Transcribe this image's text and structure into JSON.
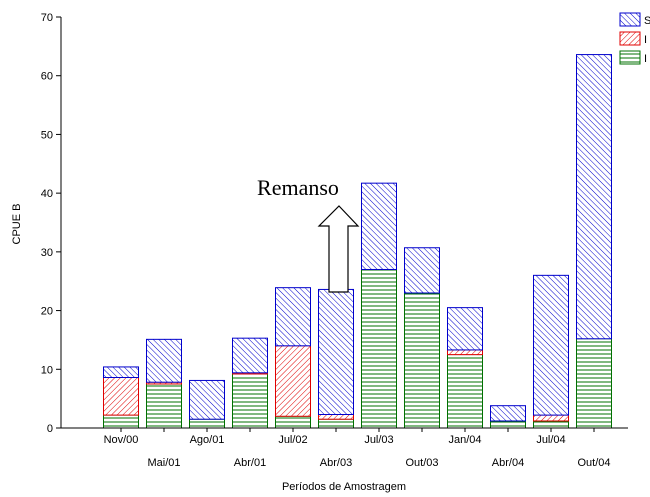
{
  "chart_data": {
    "type": "bar",
    "stacked": true,
    "categories": [
      "Nov/00",
      "Mai/01",
      "Ago/01",
      "Abr/01",
      "Jul/02",
      "Abr/03",
      "Jul/03",
      "Out/03",
      "Jan/04",
      "Abr/04",
      "Jul/04",
      "Out/04"
    ],
    "series": [
      {
        "values": [
          2.2,
          7.5,
          1.5,
          9.2,
          2.0,
          1.5,
          27.0,
          23.0,
          12.5,
          1.2,
          1.2,
          15.2
        ],
        "color": "#007000",
        "pattern": "horizontal-lines"
      },
      {
        "values": [
          6.4,
          0.3,
          0.0,
          0.2,
          12.0,
          0.8,
          0.0,
          0.0,
          0.8,
          0.0,
          1.0,
          0.0
        ],
        "color": "#e00000",
        "pattern": "diagonal-hatch-left"
      },
      {
        "values": [
          1.8,
          7.3,
          6.6,
          5.9,
          9.9,
          21.3,
          14.7,
          7.7,
          7.2,
          2.6,
          23.8,
          48.4
        ],
        "color": "#0000cc",
        "pattern": "diagonal-hatch-right"
      }
    ],
    "xlabel": "Períodos de Amostragem",
    "ylabel": "CPUE B",
    "ylim": [
      0,
      70
    ],
    "yticks": [
      0,
      10,
      20,
      30,
      40,
      50,
      60,
      70
    ],
    "legend_position": "top-right",
    "legend_labels": [
      "S",
      "I",
      "I"
    ],
    "annotation": {
      "text": "Remanso",
      "category": "Abr/03"
    }
  }
}
